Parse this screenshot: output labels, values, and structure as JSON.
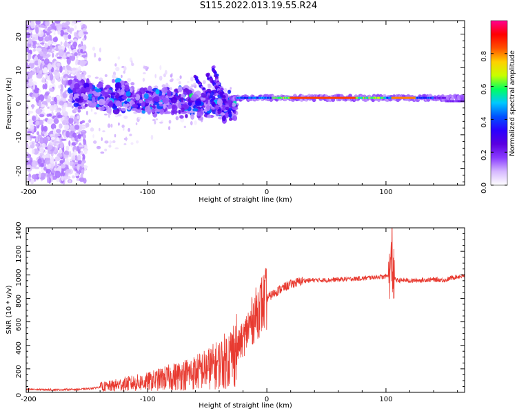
{
  "figure_title": "S115.2022.013.19.55.R24",
  "chart_data": [
    {
      "type": "heatmap",
      "title": "",
      "xlabel": "Height of straight line (km)",
      "ylabel": "Frequency (Hz)",
      "xlim": [
        -202,
        166
      ],
      "ylim": [
        -25,
        24
      ],
      "x_ticks": [
        -200,
        -100,
        0,
        100
      ],
      "y_ticks": [
        -20,
        -10,
        0,
        10,
        20
      ],
      "colorbar": {
        "label": "Normalized spectral amplitude",
        "range": [
          0,
          1
        ],
        "ticks": [
          0.0,
          0.2,
          0.4,
          0.6,
          0.8
        ],
        "colors": [
          "#ffffff",
          "#d6b8ff",
          "#8a3cff",
          "#5a00e0",
          "#2a00ff",
          "#0050ff",
          "#00c8ff",
          "#00ff60",
          "#c8ff00",
          "#ffd000",
          "#ff5000",
          "#ff0000",
          "#ff0090"
        ]
      },
      "features": {
        "carrier_line": {
          "x_start": 0,
          "x_end": 166,
          "frequency_hz": 1.0,
          "amplitude": 0.85
        },
        "scattered_region": {
          "x_range": [
            -202,
            -160
          ],
          "frequency_spread_hz": 24
        },
        "transition_region": {
          "x_range": [
            -165,
            -25
          ],
          "frequency_spread_hz": 5
        },
        "inclined_streaks": [
          {
            "x": [
              -60,
              -40
            ],
            "frequency_hz": [
              7,
              -3
            ]
          },
          {
            "x": [
              -45,
              -30
            ],
            "frequency_hz": [
              10,
              -5
            ]
          },
          {
            "x": [
              -50,
              -38
            ],
            "frequency_hz": [
              8,
              2
            ]
          }
        ]
      }
    },
    {
      "type": "line",
      "title": "",
      "xlabel": "Height of straight line (km)",
      "ylabel": "SNR (10 * v/v)",
      "xlim": [
        -202,
        166
      ],
      "ylim": [
        0,
        1400
      ],
      "x_ticks": [
        -200,
        -100,
        0,
        100
      ],
      "y_ticks": [
        0,
        200,
        400,
        600,
        800,
        1000,
        1200,
        1400
      ],
      "color": "#e83a30",
      "series": [
        {
          "x": [
            -202,
            -180,
            -160,
            -150,
            -140,
            -130,
            -120,
            -110,
            -100,
            -90,
            -80,
            -70,
            -60,
            -50,
            -40,
            -35,
            -30,
            -25,
            -20,
            -15,
            -10,
            -5,
            0,
            10,
            20,
            30,
            40,
            50,
            60,
            70,
            80,
            85,
            90,
            95,
            98,
            100,
            102,
            104,
            105,
            106,
            108,
            110,
            115,
            120,
            130,
            140,
            150,
            155,
            160,
            166
          ],
          "values": [
            25,
            22,
            25,
            30,
            45,
            55,
            70,
            80,
            90,
            110,
            130,
            150,
            170,
            200,
            240,
            270,
            310,
            380,
            450,
            560,
            650,
            740,
            800,
            870,
            920,
            950,
            955,
            955,
            960,
            965,
            970,
            975,
            980,
            985,
            980,
            990,
            1000,
            1060,
            1100,
            980,
            960,
            950,
            955,
            950,
            955,
            960,
            955,
            975,
            985,
            990
          ]
        }
      ]
    }
  ]
}
